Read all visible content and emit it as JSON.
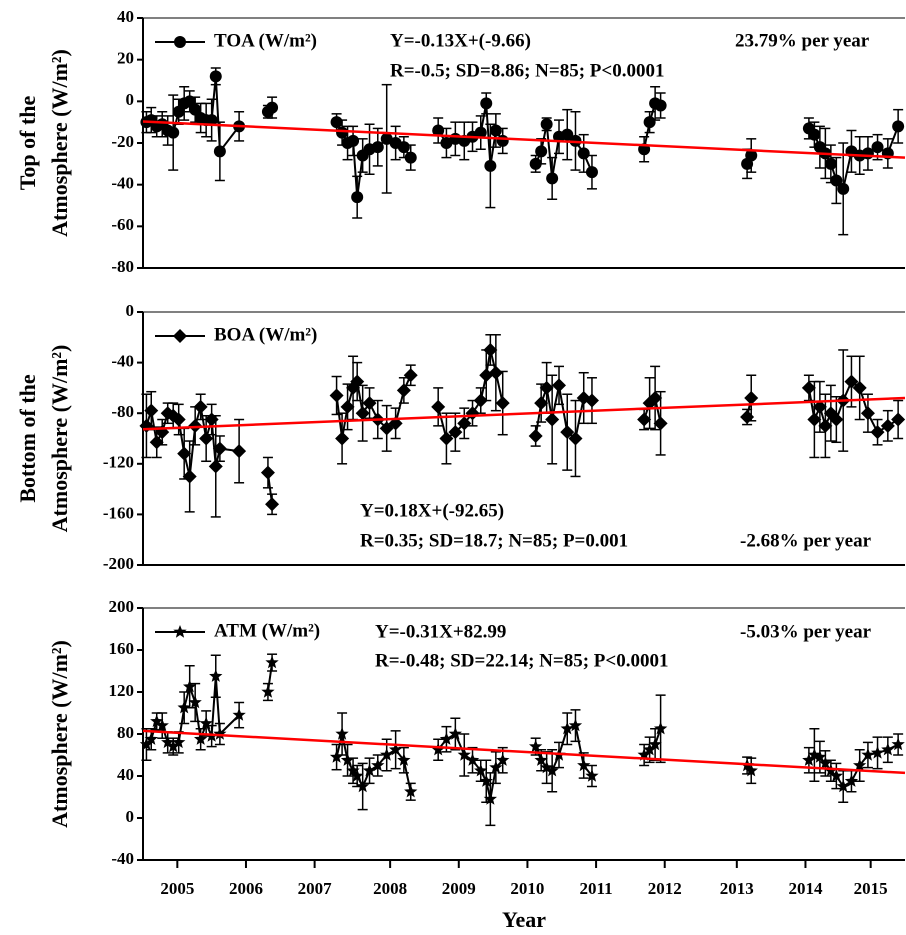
{
  "chart_data": [
    {
      "type": "line",
      "marker": "circle",
      "color": "#000000",
      "y_label": [
        "Top of the",
        "Atmosphere (W/m²)"
      ],
      "annotations": [
        "Y=-0.13X+(-9.66)",
        "R=-0.5; SD=8.86; N=85; P<0.0001",
        "23.79% per year"
      ],
      "xlim": [
        2005,
        2016.1
      ],
      "ylim": [
        -80,
        40
      ],
      "yticks": [
        -80,
        -60,
        -40,
        -20,
        0,
        20,
        40
      ],
      "x": [
        2005.05,
        2005.12,
        2005.2,
        2005.28,
        2005.36,
        2005.44,
        2005.52,
        2005.6,
        2005.68,
        2005.76,
        2005.84,
        2005.92,
        2006.0,
        2006.06,
        2006.12,
        2006.4,
        2006.82,
        2006.88,
        2007.82,
        2007.9,
        2007.98,
        2008.06,
        2008.12,
        2008.2,
        2008.3,
        2008.42,
        2008.55,
        2008.68,
        2008.8,
        2008.9,
        2009.3,
        2009.42,
        2009.55,
        2009.68,
        2009.8,
        2009.92,
        2010.0,
        2010.06,
        2010.14,
        2010.24,
        2010.72,
        2010.8,
        2010.88,
        2010.96,
        2011.06,
        2011.18,
        2011.3,
        2011.42,
        2011.54,
        2012.3,
        2012.38,
        2012.46,
        2012.54,
        2013.8,
        2013.86,
        2014.7,
        2014.78,
        2014.86,
        2014.94,
        2015.02,
        2015.1,
        2015.2,
        2015.32,
        2015.44,
        2015.56,
        2015.7,
        2015.85,
        2016.0
      ],
      "series": [
        {
          "name": "TOA (W/m²)",
          "color": "#000000",
          "values": [
            -10,
            -9,
            -12,
            -11,
            -14,
            -15,
            -5,
            -1,
            0,
            -4,
            -8,
            -9,
            -9,
            12,
            -24,
            -12,
            -5,
            -3,
            -10,
            -15,
            -20,
            -19,
            -46,
            -26,
            -23,
            -22,
            -18,
            -20,
            -22,
            -27,
            -14,
            -20,
            -18,
            -19,
            -17,
            -15,
            -1,
            -31,
            -14,
            -19,
            -30,
            -24,
            -11,
            -37,
            -17,
            -16,
            -19,
            -25,
            -34,
            -23,
            -10,
            -1,
            -2,
            -30,
            -26,
            -13,
            -16,
            -22,
            -25,
            -30,
            -38,
            -42,
            -24,
            -26,
            -25,
            -22,
            -25,
            -12
          ],
          "errors": [
            5,
            6,
            5,
            6,
            7,
            18,
            6,
            8,
            5,
            6,
            7,
            8,
            10,
            4,
            14,
            7,
            3,
            5,
            4,
            6,
            8,
            7,
            10,
            8,
            12,
            9,
            26,
            8,
            5,
            6,
            6,
            7,
            8,
            9,
            7,
            8,
            5,
            20,
            8,
            6,
            4,
            6,
            3,
            10,
            8,
            12,
            14,
            9,
            8,
            6,
            5,
            8,
            6,
            7,
            8,
            5,
            6,
            10,
            12,
            9,
            11,
            22,
            10,
            9,
            8,
            6,
            7,
            8
          ]
        }
      ],
      "fit": {
        "color": "#ff0000",
        "x": [
          2005,
          2016.1
        ],
        "values": [
          -9.66,
          -27
        ]
      }
    },
    {
      "type": "line",
      "marker": "diamond",
      "color": "#000000",
      "y_label": [
        "Bottom of the",
        "Atmosphere (W/m²)"
      ],
      "annotations": [
        "Y=0.18X+(-92.65)",
        "R=0.35; SD=18.7; N=85; P=0.001",
        "-2.68% per year"
      ],
      "xlim": [
        2005,
        2016.1
      ],
      "ylim": [
        -200,
        0
      ],
      "yticks": [
        -200,
        -160,
        -120,
        -80,
        -40,
        0
      ],
      "x": [
        2005.05,
        2005.12,
        2005.2,
        2005.28,
        2005.36,
        2005.44,
        2005.52,
        2005.6,
        2005.68,
        2005.76,
        2005.84,
        2005.92,
        2006.0,
        2006.06,
        2006.12,
        2006.4,
        2006.82,
        2006.88,
        2007.82,
        2007.9,
        2007.98,
        2008.06,
        2008.12,
        2008.2,
        2008.3,
        2008.42,
        2008.55,
        2008.68,
        2008.8,
        2008.9,
        2009.3,
        2009.42,
        2009.55,
        2009.68,
        2009.8,
        2009.92,
        2010.0,
        2010.06,
        2010.14,
        2010.24,
        2010.72,
        2010.8,
        2010.88,
        2010.96,
        2011.06,
        2011.18,
        2011.3,
        2011.42,
        2011.54,
        2012.3,
        2012.38,
        2012.46,
        2012.54,
        2013.8,
        2013.86,
        2014.7,
        2014.78,
        2014.86,
        2014.94,
        2015.02,
        2015.1,
        2015.2,
        2015.32,
        2015.44,
        2015.56,
        2015.7,
        2015.85,
        2016.0
      ],
      "series": [
        {
          "name": "BOA (W/m²)",
          "color": "#000000",
          "values": [
            -90,
            -78,
            -103,
            -95,
            -80,
            -82,
            -85,
            -112,
            -130,
            -90,
            -75,
            -100,
            -85,
            -122,
            -108,
            -110,
            -127,
            -152,
            -66,
            -100,
            -75,
            -60,
            -55,
            -80,
            -72,
            -85,
            -92,
            -88,
            -62,
            -50,
            -75,
            -100,
            -95,
            -88,
            -80,
            -70,
            -50,
            -30,
            -48,
            -72,
            -98,
            -72,
            -60,
            -85,
            -58,
            -95,
            -100,
            -68,
            -70,
            -85,
            -72,
            -68,
            -88,
            -83,
            -68,
            -60,
            -85,
            -75,
            -90,
            -80,
            -85,
            -70,
            -55,
            -60,
            -80,
            -95,
            -90,
            -85
          ],
          "errors": [
            25,
            15,
            12,
            10,
            8,
            10,
            12,
            20,
            28,
            15,
            10,
            18,
            12,
            40,
            10,
            25,
            12,
            8,
            15,
            20,
            18,
            25,
            15,
            22,
            12,
            15,
            18,
            12,
            10,
            8,
            15,
            20,
            15,
            12,
            10,
            10,
            20,
            12,
            30,
            25,
            8,
            15,
            20,
            35,
            15,
            30,
            30,
            20,
            18,
            8,
            20,
            25,
            25,
            6,
            18,
            10,
            30,
            20,
            25,
            22,
            18,
            40,
            20,
            25,
            15,
            10,
            12,
            15
          ]
        }
      ],
      "fit": {
        "color": "#ff0000",
        "x": [
          2005,
          2016.1
        ],
        "values": [
          -92.65,
          -68
        ]
      }
    },
    {
      "type": "line",
      "marker": "star",
      "color": "#000000",
      "y_label": [
        "Atmosphere (W/m²)"
      ],
      "annotations": [
        "Y=-0.31X+82.99",
        "R=-0.48; SD=22.14; N=85; P<0.0001",
        "-5.03% per year"
      ],
      "x_label": "Year",
      "xlim": [
        2005,
        2016.1
      ],
      "ylim": [
        -40,
        200
      ],
      "yticks": [
        -40,
        0,
        40,
        80,
        120,
        160,
        200
      ],
      "xticks": [
        {
          "value": 2005.5,
          "label": "2005"
        },
        {
          "value": 2006.5,
          "label": "2006"
        },
        {
          "value": 2007.5,
          "label": "2007"
        },
        {
          "value": 2008.6,
          "label": "2008"
        },
        {
          "value": 2009.6,
          "label": "2009"
        },
        {
          "value": 2010.6,
          "label": "2010"
        },
        {
          "value": 2011.6,
          "label": "2011"
        },
        {
          "value": 2012.6,
          "label": "2012"
        },
        {
          "value": 2013.65,
          "label": "2013"
        },
        {
          "value": 2014.65,
          "label": "2014"
        },
        {
          "value": 2015.6,
          "label": "2015"
        }
      ],
      "x": [
        2005.05,
        2005.12,
        2005.2,
        2005.28,
        2005.36,
        2005.44,
        2005.52,
        2005.6,
        2005.68,
        2005.76,
        2005.84,
        2005.92,
        2006.0,
        2006.06,
        2006.12,
        2006.4,
        2006.82,
        2006.88,
        2007.82,
        2007.9,
        2007.98,
        2008.06,
        2008.12,
        2008.2,
        2008.3,
        2008.42,
        2008.55,
        2008.68,
        2008.8,
        2008.9,
        2009.3,
        2009.42,
        2009.55,
        2009.68,
        2009.8,
        2009.92,
        2010.0,
        2010.06,
        2010.14,
        2010.24,
        2010.72,
        2010.8,
        2010.88,
        2010.96,
        2011.06,
        2011.18,
        2011.3,
        2011.42,
        2011.54,
        2012.3,
        2012.38,
        2012.46,
        2012.54,
        2013.8,
        2013.86,
        2014.7,
        2014.78,
        2014.86,
        2014.94,
        2015.02,
        2015.1,
        2015.2,
        2015.32,
        2015.44,
        2015.56,
        2015.7,
        2015.85,
        2016.0
      ],
      "series": [
        {
          "name": "ATM (W/m²)",
          "color": "#000000",
          "values": [
            70,
            75,
            92,
            88,
            72,
            68,
            72,
            105,
            125,
            110,
            75,
            90,
            78,
            135,
            80,
            98,
            120,
            148,
            58,
            80,
            55,
            45,
            40,
            30,
            45,
            50,
            60,
            65,
            55,
            25,
            65,
            75,
            80,
            60,
            55,
            45,
            35,
            18,
            48,
            55,
            68,
            55,
            48,
            45,
            60,
            85,
            88,
            50,
            40,
            60,
            65,
            70,
            85,
            50,
            45,
            55,
            60,
            58,
            52,
            45,
            40,
            30,
            35,
            50,
            60,
            62,
            65,
            70
          ],
          "errors": [
            15,
            10,
            8,
            12,
            10,
            8,
            10,
            15,
            20,
            18,
            10,
            12,
            10,
            20,
            10,
            12,
            8,
            8,
            12,
            20,
            15,
            12,
            10,
            22,
            12,
            10,
            15,
            18,
            12,
            8,
            10,
            12,
            15,
            20,
            12,
            10,
            20,
            25,
            15,
            12,
            8,
            10,
            15,
            20,
            12,
            15,
            15,
            12,
            10,
            10,
            12,
            15,
            32,
            8,
            12,
            12,
            25,
            15,
            12,
            10,
            12,
            15,
            10,
            15,
            12,
            15,
            12,
            10
          ]
        }
      ],
      "fit": {
        "color": "#ff0000",
        "x": [
          2005,
          2016.1
        ],
        "values": [
          82.99,
          43
        ]
      }
    }
  ]
}
